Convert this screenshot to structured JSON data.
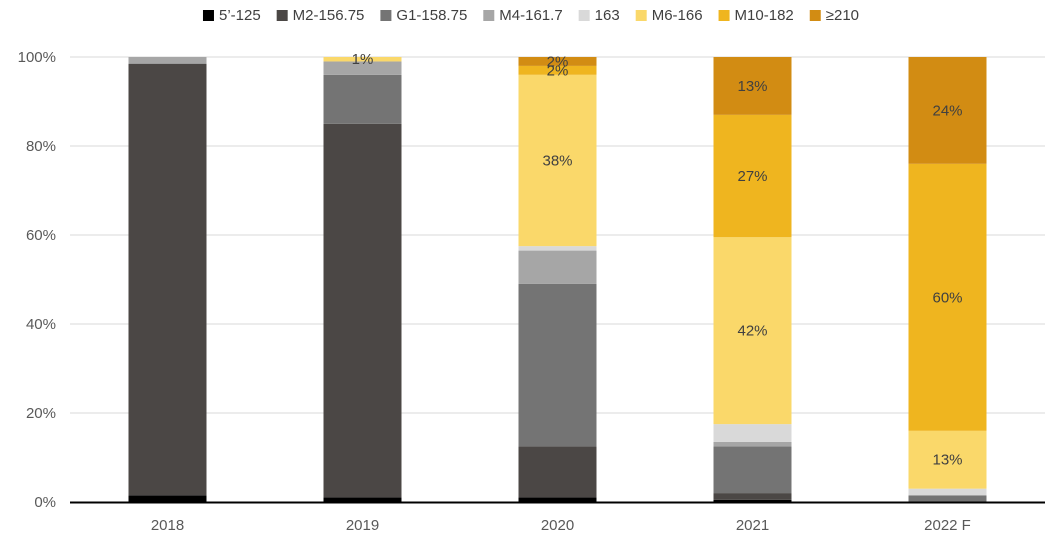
{
  "chart_data": {
    "type": "bar",
    "stacked": true,
    "categories": [
      "2018",
      "2019",
      "2020",
      "2021",
      "2022 F"
    ],
    "yticks": [
      "0%",
      "20%",
      "40%",
      "60%",
      "80%",
      "100%"
    ],
    "ylim": [
      0,
      100
    ],
    "legend_position": "top",
    "series": [
      {
        "name": "5’-125",
        "color": "#000000",
        "values": [
          1.5,
          1,
          1,
          0.5,
          0
        ]
      },
      {
        "name": "M2-156.75",
        "color": "#4b4745",
        "values": [
          97,
          84,
          11.5,
          1.5,
          0
        ]
      },
      {
        "name": "G1-158.75",
        "color": "#747474",
        "values": [
          0,
          11,
          36.5,
          10.5,
          1.5
        ]
      },
      {
        "name": "M4-161.7",
        "color": "#a6a6a6",
        "values": [
          1.5,
          3,
          7.5,
          1,
          0
        ]
      },
      {
        "name": "163",
        "color": "#d9d9d9",
        "values": [
          0,
          0,
          1,
          4,
          1.5
        ]
      },
      {
        "name": "M6-166",
        "color": "#fad86a",
        "values": [
          0,
          1,
          38.5,
          42,
          13
        ]
      },
      {
        "name": "M10-182",
        "color": "#efb51f",
        "values": [
          0,
          0,
          2,
          27.5,
          60
        ]
      },
      {
        "name": "≥210",
        "color": "#d28c13",
        "values": [
          0,
          0,
          2,
          13,
          24
        ]
      }
    ],
    "data_labels": [
      {
        "category": "2019",
        "series": "M6-166",
        "text": "1%"
      },
      {
        "category": "2020",
        "series": "M6-166",
        "text": "38%"
      },
      {
        "category": "2020",
        "series": "M10-182",
        "text": "2%"
      },
      {
        "category": "2020",
        "series": "≥210",
        "text": "2%"
      },
      {
        "category": "2021",
        "series": "M6-166",
        "text": "42%"
      },
      {
        "category": "2021",
        "series": "M10-182",
        "text": "27%"
      },
      {
        "category": "2021",
        "series": "≥210",
        "text": "13%"
      },
      {
        "category": "2022 F",
        "series": "M6-166",
        "text": "13%"
      },
      {
        "category": "2022 F",
        "series": "M10-182",
        "text": "60%"
      },
      {
        "category": "2022 F",
        "series": "≥210",
        "text": "24%"
      }
    ],
    "gridlines": true
  }
}
